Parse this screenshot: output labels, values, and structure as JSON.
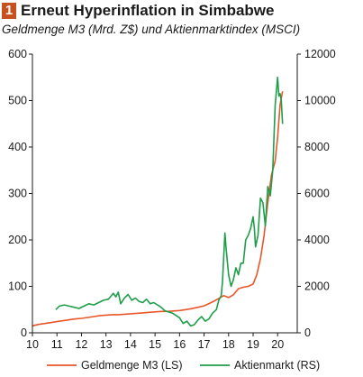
{
  "header": {
    "badge": "1",
    "title": "Erneut Hyperinflation in Simbabwe",
    "subtitle": "Geldmenge M3 (Mrd. Z$) und Aktienmarktindex (MSCI)"
  },
  "chart_data": {
    "type": "line",
    "title": "Erneut Hyperinflation in Simbabwe",
    "subtitle": "Geldmenge M3 (Mrd. Z$) und Aktienmarktindex (MSCI)",
    "x_ticks": [
      "10",
      "11",
      "12",
      "13",
      "14",
      "15",
      "16",
      "17",
      "18",
      "19",
      "20"
    ],
    "xlim": [
      10,
      20.8
    ],
    "left_axis": {
      "ylim": [
        0,
        600
      ],
      "ticks": [
        "0",
        "100",
        "200",
        "300",
        "400",
        "500",
        "600"
      ]
    },
    "right_axis": {
      "ylim": [
        0,
        12000
      ],
      "ticks": [
        "0",
        "2000",
        "4000",
        "6000",
        "8000",
        "10000",
        "12000"
      ]
    },
    "grid": false,
    "legend_position": "bottom",
    "colors": {
      "m3": "#e8572a",
      "stock": "#1e9e4a"
    },
    "series": [
      {
        "name": "Geldmenge M3 (LS)",
        "axis": "left",
        "x": [
          10,
          10.25,
          10.5,
          10.75,
          11,
          11.25,
          11.5,
          11.75,
          12,
          12.25,
          12.5,
          12.75,
          13,
          13.25,
          13.5,
          13.75,
          14,
          14.25,
          14.5,
          14.75,
          15,
          15.25,
          15.5,
          15.75,
          16,
          16.25,
          16.5,
          16.75,
          17,
          17.2,
          17.4,
          17.6,
          17.8,
          18,
          18.2,
          18.4,
          18.6,
          18.8,
          19,
          19.15,
          19.3,
          19.45,
          19.6,
          19.75,
          19.9,
          20,
          20.1,
          20.2
        ],
        "values": [
          15,
          18,
          20,
          22,
          24,
          26,
          28,
          30,
          31,
          33,
          35,
          37,
          38,
          39,
          39,
          40,
          41,
          42,
          43,
          44,
          45,
          46,
          46,
          47,
          48,
          50,
          52,
          55,
          58,
          63,
          68,
          74,
          80,
          76,
          82,
          95,
          98,
          100,
          105,
          125,
          160,
          210,
          280,
          340,
          370,
          420,
          490,
          520
        ]
      },
      {
        "name": "Aktienmarkt (RS)",
        "axis": "right",
        "x": [
          10.95,
          11.1,
          11.3,
          11.5,
          11.7,
          11.9,
          12.1,
          12.3,
          12.5,
          12.7,
          12.9,
          13.1,
          13.3,
          13.4,
          13.5,
          13.6,
          13.75,
          13.9,
          14.05,
          14.2,
          14.35,
          14.5,
          14.65,
          14.8,
          14.95,
          15.1,
          15.25,
          15.4,
          15.55,
          15.7,
          15.85,
          16,
          16.15,
          16.3,
          16.45,
          16.6,
          16.75,
          16.9,
          17.05,
          17.2,
          17.35,
          17.5,
          17.6,
          17.7,
          17.75,
          17.8,
          17.85,
          17.9,
          18,
          18.1,
          18.2,
          18.3,
          18.4,
          18.5,
          18.6,
          18.7,
          18.8,
          18.9,
          19,
          19.05,
          19.1,
          19.2,
          19.3,
          19.4,
          19.5,
          19.6,
          19.7,
          19.8,
          19.9,
          20,
          20.05,
          20.1,
          20.15,
          20.2
        ],
        "values": [
          1000,
          1150,
          1200,
          1150,
          1100,
          1050,
          1150,
          1250,
          1200,
          1300,
          1400,
          1450,
          1700,
          1550,
          1750,
          1250,
          1500,
          1650,
          1400,
          1500,
          1350,
          1300,
          1450,
          1250,
          1300,
          1200,
          1100,
          950,
          900,
          850,
          750,
          650,
          400,
          500,
          300,
          350,
          550,
          700,
          500,
          600,
          850,
          1000,
          1400,
          1600,
          2200,
          3200,
          4300,
          3600,
          2500,
          2000,
          2300,
          2800,
          2500,
          3000,
          3000,
          4000,
          4200,
          4500,
          5000,
          4500,
          3700,
          4200,
          5800,
          5600,
          4600,
          6300,
          5900,
          7000,
          9800,
          11000,
          10200,
          10300,
          10000,
          9000
        ]
      }
    ]
  }
}
